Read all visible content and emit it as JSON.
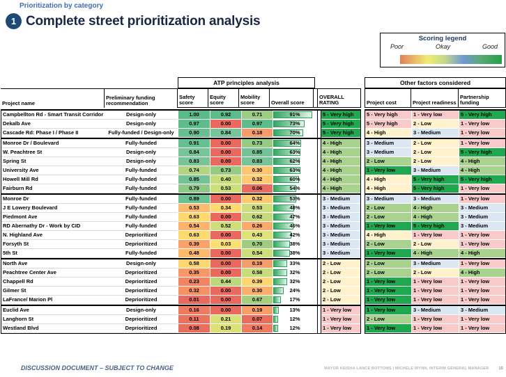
{
  "page": {
    "breadcrumb": "Prioritization by category",
    "badge": "1",
    "title": "Complete street prioritization analysis",
    "footer_left": "DISCUSSION DOCUMENT – SUBJECT TO CHANGE",
    "footer_right": "MAYOR KEISHA LANCE BOTTOMS   |   MICHELE WYNN, INTERIM GENERAL MANAGER",
    "page_number": "15"
  },
  "legend": {
    "title": "Scoring legend",
    "label_poor": "Poor",
    "label_okay": "Okay",
    "label_good": "Good",
    "gradient_colors": [
      "#e2805a",
      "#efec72",
      "#6f9ad3",
      "#23a14a"
    ]
  },
  "left_table": {
    "banner": "ATP principles analysis",
    "col_project": "Project name",
    "col_funding": "Preliminary funding recommendation",
    "col_safety": "Safety score",
    "col_equity": "Equity score",
    "col_mobility": "Mobility score",
    "col_overall": "Overall score",
    "col_rating": "OVERALL RATING"
  },
  "right_table": {
    "banner": "Other factors considered",
    "col_cost": "Project cost",
    "col_readiness": "Project readiness",
    "col_partnership": "Partnership funding"
  },
  "palette": {
    "levels": {
      "dgreen": "#1fa84f",
      "lgreen": "#a9d28f",
      "blue": "#dbe7f3",
      "cream": "#fff2cc",
      "pink": "#f8caca"
    },
    "bar_border": "#2e9e5b",
    "bar_fill_start": "#34a663"
  },
  "rows": [
    {
      "name": "Campbellton Rd  - Smart Transit Corridor",
      "funding": "Design-only",
      "funding_bold": false,
      "safety": "1.00",
      "safety_c": "#57bb8a",
      "equity": "0.92",
      "equity_c": "#5cbd8b",
      "mobility": "0.71",
      "mobility_c": "#9ccd81",
      "overall_pct": 91,
      "rating": "5 - Very high",
      "rating_c": "dgreen",
      "cost": "5 - Very high",
      "cost_c": "pink",
      "readiness": "1 - Very low",
      "readiness_c": "pink",
      "partnership": "5 - Very high",
      "partnership_c": "dgreen",
      "sep": false
    },
    {
      "name": "Dekalb Ave",
      "funding": "Design-only",
      "funding_bold": false,
      "safety": "0.97",
      "safety_c": "#5cbd8b",
      "equity": "0.00",
      "equity_c": "#e9695f",
      "mobility": "0.97",
      "mobility_c": "#5cbd8b",
      "overall_pct": 73,
      "rating": "5 - Very high",
      "rating_c": "dgreen",
      "cost": "5 - Very high",
      "cost_c": "pink",
      "readiness": "2 - Low",
      "readiness_c": "cream",
      "partnership": "1 - Very low",
      "partnership_c": "pink",
      "sep": false
    },
    {
      "name": "Cascade Rd:  Phase I / Phase II",
      "funding": "Fully-funded / Design-only",
      "funding_bold": true,
      "safety": "0.90",
      "safety_c": "#68c091",
      "equity": "0.84",
      "equity_c": "#76c497",
      "mobility": "0.18",
      "mobility_c": "#f59b6c",
      "overall_pct": 70,
      "rating": "5 - Very high",
      "rating_c": "dgreen",
      "cost": "4 - High",
      "cost_c": "cream",
      "readiness": "3 - Medium",
      "readiness_c": "blue",
      "partnership": "1 - Very low",
      "partnership_c": "pink",
      "sep": true
    },
    {
      "name": "Monroe Dr / Boulevard",
      "funding": "Fully-funded",
      "funding_bold": true,
      "safety": "0.91",
      "safety_c": "#66c090",
      "equity": "0.00",
      "equity_c": "#e9695f",
      "mobility": "0.73",
      "mobility_c": "#95cb83",
      "overall_pct": 64,
      "rating": "4 - High",
      "rating_c": "lgreen",
      "cost": "3 - Medium",
      "cost_c": "blue",
      "readiness": "2 - Low",
      "readiness_c": "cream",
      "partnership": "1 - Very low",
      "partnership_c": "pink",
      "sep": false
    },
    {
      "name": "W. Peachtree St",
      "funding": "Design-only",
      "funding_bold": false,
      "safety": "0.84",
      "safety_c": "#76c497",
      "equity": "0.00",
      "equity_c": "#e9695f",
      "mobility": "0.85",
      "mobility_c": "#74c396",
      "overall_pct": 63,
      "rating": "4 - High",
      "rating_c": "lgreen",
      "cost": "3 - Medium",
      "cost_c": "blue",
      "readiness": "2 - Low",
      "readiness_c": "cream",
      "partnership": "5 - Very high",
      "partnership_c": "dgreen",
      "sep": false
    },
    {
      "name": "Spring St",
      "funding": "Design-only",
      "funding_bold": false,
      "safety": "0.83",
      "safety_c": "#78c498",
      "equity": "0.00",
      "equity_c": "#e9695f",
      "mobility": "0.83",
      "mobility_c": "#78c498",
      "overall_pct": 62,
      "rating": "4 - High",
      "rating_c": "lgreen",
      "cost": "2 - Low",
      "cost_c": "lgreen",
      "readiness": "2 - Low",
      "readiness_c": "cream",
      "partnership": "4 - High",
      "partnership_c": "lgreen",
      "sep": false
    },
    {
      "name": "University Ave",
      "funding": "Fully-funded",
      "funding_bold": true,
      "safety": "0.74",
      "safety_c": "#b3d57e",
      "equity": "0.73",
      "equity_c": "#95cb83",
      "mobility": "0.30",
      "mobility_c": "#fec46e",
      "overall_pct": 63,
      "rating": "4 - High",
      "rating_c": "lgreen",
      "cost": "1 - Very low",
      "cost_c": "dgreen",
      "readiness": "3 - Medium",
      "readiness_c": "blue",
      "partnership": "4 - High",
      "partnership_c": "lgreen",
      "sep": false
    },
    {
      "name": "Howell Mill Rd",
      "funding": "Fully-funded",
      "funding_bold": true,
      "safety": "0.85",
      "safety_c": "#74c396",
      "equity": "0.40",
      "equity_c": "#c9dc7b",
      "mobility": "0.32",
      "mobility_c": "#fec96f",
      "overall_pct": 60,
      "rating": "4 - High",
      "rating_c": "lgreen",
      "cost": "4 - High",
      "cost_c": "cream",
      "readiness": "5 - Very high",
      "readiness_c": "dgreen",
      "partnership": "5 - Very high",
      "partnership_c": "dgreen",
      "sep": false
    },
    {
      "name": "Fairburn Rd",
      "funding": "Fully-funded",
      "funding_bold": true,
      "safety": "0.79",
      "safety_c": "#8fc987",
      "equity": "0.53",
      "equity_c": "#cede7a",
      "mobility": "0.06",
      "mobility_c": "#ea6e5f",
      "overall_pct": 54,
      "rating": "4 - High",
      "rating_c": "lgreen",
      "cost": "4 - High",
      "cost_c": "cream",
      "readiness": "5 - Very high",
      "readiness_c": "dgreen",
      "partnership": "1 - Very low",
      "partnership_c": "pink",
      "sep": true
    },
    {
      "name": "Monroe Dr",
      "funding": "Fully-funded",
      "funding_bold": true,
      "safety": "0.89",
      "safety_c": "#6bc192",
      "equity": "0.00",
      "equity_c": "#e9695f",
      "mobility": "0.32",
      "mobility_c": "#fec96f",
      "overall_pct": 53,
      "rating": "3 - Medium",
      "rating_c": "blue",
      "cost": "3 - Medium",
      "cost_c": "blue",
      "readiness": "3 - Medium",
      "readiness_c": "blue",
      "partnership": "1 - Very low",
      "partnership_c": "pink",
      "sep": false
    },
    {
      "name": "J E Lowery Boulevard",
      "funding": "Fully-funded",
      "funding_bold": true,
      "safety": "0.53",
      "safety_c": "#fdbc6d",
      "equity": "0.34",
      "equity_c": "#ffd96f",
      "mobility": "0.53",
      "mobility_c": "#cede7a",
      "overall_pct": 48,
      "rating": "3 - Medium",
      "rating_c": "blue",
      "cost": "2 - Low",
      "cost_c": "lgreen",
      "readiness": "4 - High",
      "readiness_c": "lgreen",
      "partnership": "3 - Medium",
      "partnership_c": "blue",
      "sep": false
    },
    {
      "name": "Piedmont Ave",
      "funding": "Fully-funded",
      "funding_bold": true,
      "safety": "0.63",
      "safety_c": "#fed96e",
      "equity": "0.00",
      "equity_c": "#e9695f",
      "mobility": "0.62",
      "mobility_c": "#c4da7c",
      "overall_pct": 47,
      "rating": "3 - Medium",
      "rating_c": "blue",
      "cost": "2 - Low",
      "cost_c": "lgreen",
      "readiness": "4 - High",
      "readiness_c": "lgreen",
      "partnership": "3 - Medium",
      "partnership_c": "blue",
      "sep": false
    },
    {
      "name": "RD Abernathy Dr  - Work by CID",
      "funding": "Fully-funded",
      "funding_bold": true,
      "safety": "0.54",
      "safety_c": "#fcb46b",
      "equity": "0.52",
      "equity_c": "#d0de79",
      "mobility": "0.26",
      "mobility_c": "#fbaa6a",
      "overall_pct": 46,
      "rating": "3 - Medium",
      "rating_c": "blue",
      "cost": "1 - Very low",
      "cost_c": "dgreen",
      "readiness": "5 - Very high",
      "readiness_c": "dgreen",
      "partnership": "3 - Medium",
      "partnership_c": "blue",
      "sep": false
    },
    {
      "name": "N. Highland Ave",
      "funding": "Deprioritized",
      "funding_bold": false,
      "safety": "0.63",
      "safety_c": "#fed96e",
      "equity": "0.00",
      "equity_c": "#e9695f",
      "mobility": "0.43",
      "mobility_c": "#dfe277",
      "overall_pct": 42,
      "rating": "3 - Medium",
      "rating_c": "blue",
      "cost": "4 - High",
      "cost_c": "cream",
      "readiness": "1 - Very low",
      "readiness_c": "pink",
      "partnership": "1 - Very low",
      "partnership_c": "pink",
      "sep": false
    },
    {
      "name": "Forsyth St",
      "funding": "Deprioritized",
      "funding_bold": false,
      "safety": "0.39",
      "safety_c": "#f9a369",
      "equity": "0.03",
      "equity_c": "#fee070",
      "mobility": "0.70",
      "mobility_c": "#9ecd80",
      "overall_pct": 38,
      "rating": "3 - Medium",
      "rating_c": "blue",
      "cost": "2 - Low",
      "cost_c": "lgreen",
      "readiness": "2 - Low",
      "readiness_c": "cream",
      "partnership": "1 - Very low",
      "partnership_c": "pink",
      "sep": false
    },
    {
      "name": "5th St",
      "funding": "Fully-funded",
      "funding_bold": true,
      "safety": "0.48",
      "safety_c": "#fdba6c",
      "equity": "0.00",
      "equity_c": "#e9695f",
      "mobility": "0.54",
      "mobility_c": "#cede7a",
      "overall_pct": 38,
      "rating": "3 - Medium",
      "rating_c": "blue",
      "cost": "1 - Very low",
      "cost_c": "dgreen",
      "readiness": "4 - High",
      "readiness_c": "lgreen",
      "partnership": "4 - High",
      "partnership_c": "lgreen",
      "sep": true
    },
    {
      "name": "North Ave",
      "funding": "Design-only",
      "funding_bold": false,
      "safety": "0.58",
      "safety_c": "#fed76e",
      "equity": "0.00",
      "equity_c": "#e9695f",
      "mobility": "0.19",
      "mobility_c": "#f69c68",
      "overall_pct": 33,
      "rating": "2 - Low",
      "rating_c": "cream",
      "cost": "2 - Low",
      "cost_c": "lgreen",
      "readiness": "3 - Medium",
      "readiness_c": "blue",
      "partnership": "1 - Very low",
      "partnership_c": "pink",
      "sep": false
    },
    {
      "name": "Peachtree Center Ave",
      "funding": "Deprioritized",
      "funding_bold": false,
      "safety": "0.35",
      "safety_c": "#f89867",
      "equity": "0.00",
      "equity_c": "#e9695f",
      "mobility": "0.58",
      "mobility_c": "#c9dc7b",
      "overall_pct": 32,
      "rating": "2 - Low",
      "rating_c": "cream",
      "cost": "2 - Low",
      "cost_c": "lgreen",
      "readiness": "2 - Low",
      "readiness_c": "cream",
      "partnership": "4 - High",
      "partnership_c": "lgreen",
      "sep": false
    },
    {
      "name": "Chappell Rd",
      "funding": "Deprioritized",
      "funding_bold": false,
      "safety": "0.23",
      "safety_c": "#f28464",
      "equity": "0.44",
      "equity_c": "#bcd87d",
      "mobility": "0.39",
      "mobility_c": "#fed56e",
      "overall_pct": 32,
      "rating": "2 - Low",
      "rating_c": "cream",
      "cost": "1 - Very low",
      "cost_c": "dgreen",
      "readiness": "1 - Very low",
      "readiness_c": "pink",
      "partnership": "1 - Very low",
      "partnership_c": "pink",
      "sep": false
    },
    {
      "name": "Gilmer St",
      "funding": "Deprioritized",
      "funding_bold": false,
      "safety": "0.32",
      "safety_c": "#f69166",
      "equity": "0.00",
      "equity_c": "#e9695f",
      "mobility": "0.30",
      "mobility_c": "#fbaf6b",
      "overall_pct": 24,
      "rating": "2 - Low",
      "rating_c": "cream",
      "cost": "1 - Very low",
      "cost_c": "dgreen",
      "readiness": "1 - Very low",
      "readiness_c": "pink",
      "partnership": "1 - Very low",
      "partnership_c": "pink",
      "sep": false
    },
    {
      "name": "LaFrance/ Marion Pl",
      "funding": "Deprioritized",
      "funding_bold": false,
      "safety": "0.01",
      "safety_c": "#e8695f",
      "equity": "0.00",
      "equity_c": "#e9695f",
      "mobility": "0.67",
      "mobility_c": "#a6d07f",
      "overall_pct": 17,
      "rating": "2 - Low",
      "rating_c": "cream",
      "cost": "1 - Very low",
      "cost_c": "dgreen",
      "readiness": "1 - Very low",
      "readiness_c": "pink",
      "partnership": "1 - Very low",
      "partnership_c": "pink",
      "sep": true
    },
    {
      "name": "Euclid Ave",
      "funding": "Design-only",
      "funding_bold": false,
      "safety": "0.16",
      "safety_c": "#ee7a61",
      "equity": "0.00",
      "equity_c": "#e9695f",
      "mobility": "0.19",
      "mobility_c": "#f89e69",
      "overall_pct": 13,
      "rating": "1 - Very low",
      "rating_c": "pink",
      "cost": "1 - Very low",
      "cost_c": "dgreen",
      "readiness": "3 - Medium",
      "readiness_c": "blue",
      "partnership": "3 - Medium",
      "partnership_c": "blue",
      "sep": false
    },
    {
      "name": "Langhorn St",
      "funding": "Deprioritized",
      "funding_bold": false,
      "safety": "0.11",
      "safety_c": "#ec7260",
      "equity": "0.21",
      "equity_c": "#d9e078",
      "mobility": "0.07",
      "mobility_c": "#e96d5e",
      "overall_pct": 12,
      "rating": "1 - Very low",
      "rating_c": "pink",
      "cost": "2 - Low",
      "cost_c": "lgreen",
      "readiness": "1 - Very low",
      "readiness_c": "pink",
      "partnership": "1 - Very low",
      "partnership_c": "pink",
      "sep": false
    },
    {
      "name": "Westland Blvd",
      "funding": "Deprioritized",
      "funding_bold": false,
      "safety": "0.08",
      "safety_c": "#ea6e5f",
      "equity": "0.19",
      "equity_c": "#dce178",
      "mobility": "0.14",
      "mobility_c": "#ef7b61",
      "overall_pct": 12,
      "rating": "1 - Very low",
      "rating_c": "pink",
      "cost": "1 - Very low",
      "cost_c": "dgreen",
      "readiness": "1 - Very low",
      "readiness_c": "pink",
      "partnership": "1 - Very low",
      "partnership_c": "pink",
      "sep": false
    }
  ]
}
